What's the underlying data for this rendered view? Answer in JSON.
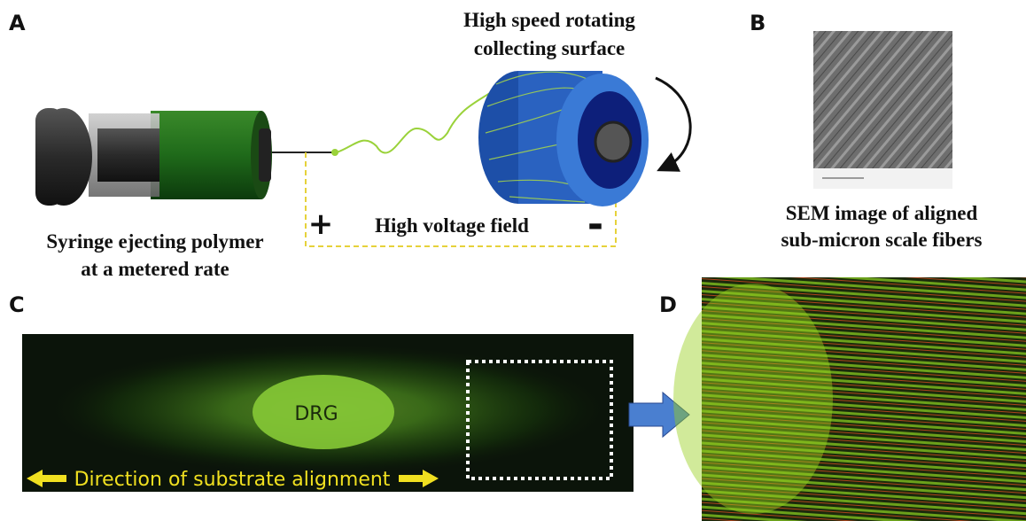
{
  "panel_a": {
    "label": "A",
    "collector_caption": [
      "High speed rotating",
      "collecting surface"
    ],
    "syringe_caption": [
      "Syringe ejecting polymer",
      "at a metered rate"
    ],
    "plus": "+",
    "field_label": "High voltage field",
    "minus": "-"
  },
  "panel_b": {
    "label": "B",
    "caption": [
      "SEM image of aligned",
      "sub-micron scale fibers"
    ]
  },
  "panel_c": {
    "label": "C",
    "center_label": "DRG",
    "direction_label": "Direction of substrate alignment"
  },
  "panel_d": {
    "label": "D"
  }
}
